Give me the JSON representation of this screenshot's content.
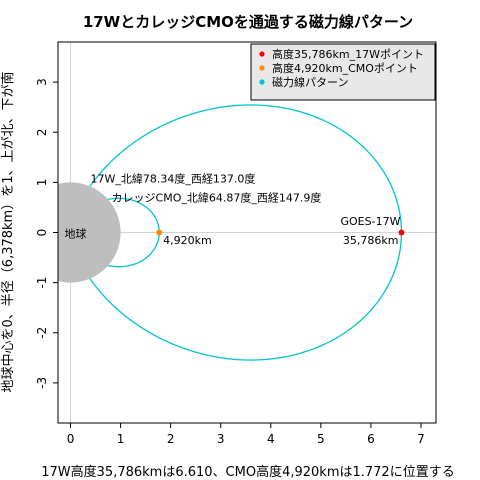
{
  "chart_data": {
    "type": "line",
    "title": "17WとカレッジCMOを通過する磁力線パターン",
    "xlabel": "17W高度35,786kmは6.610、CMO高度4,920kmは1.772に位置する",
    "ylabel": "地球中心を0、半径（6,378km）を1、上が北、下が南",
    "xlim": [
      -0.25,
      7.3
    ],
    "ylim": [
      -3.8,
      3.8
    ],
    "x_ticks": [
      "0",
      "1",
      "2",
      "3",
      "4",
      "5",
      "6",
      "7"
    ],
    "y_ticks": [
      "3",
      "2",
      "1",
      "0",
      "-1",
      "-2",
      "-3"
    ],
    "grid": false,
    "legend_position": "top-right",
    "colors": {
      "earth": "#bebebe",
      "axis_lines": "#d3d3d3",
      "field_line": "#00c5cd",
      "point_17w": "#ff0000",
      "point_cmo": "#ff8c00",
      "legend_bg": "#e8e8e8"
    },
    "earth": {
      "label": "地球",
      "radius": 1
    },
    "field_lines": [
      {
        "name": "17W",
        "L": 6.61,
        "lat": "北緯78.34度",
        "lon": "西経137.0度"
      },
      {
        "name": "CMO",
        "L": 1.772,
        "lat": "北緯64.87度",
        "lon": "西経147.9度"
      }
    ],
    "points": [
      {
        "name": "GOES-17W",
        "x": 6.61,
        "y": 0,
        "label": "35,786km"
      },
      {
        "name": "CMO",
        "x": 1.772,
        "y": 0,
        "label": "4,920km"
      }
    ],
    "annotations": {
      "footpoint_17w": "17W_北緯78.34度_西経137.0度",
      "footpoint_cmo": "カレッジCMO_北緯64.87度_西経147.9度",
      "goes_name": "GOES-17W",
      "goes_alt": "35,786km",
      "cmo_alt": "4,920km"
    },
    "legend": [
      {
        "label": "高度35,786km_17Wポイント",
        "color": "#ff0000"
      },
      {
        "label": "高度4,920km_CMOポイント",
        "color": "#ff8c00"
      },
      {
        "label": "磁力線パターン",
        "color": "#00c5cd"
      }
    ]
  }
}
